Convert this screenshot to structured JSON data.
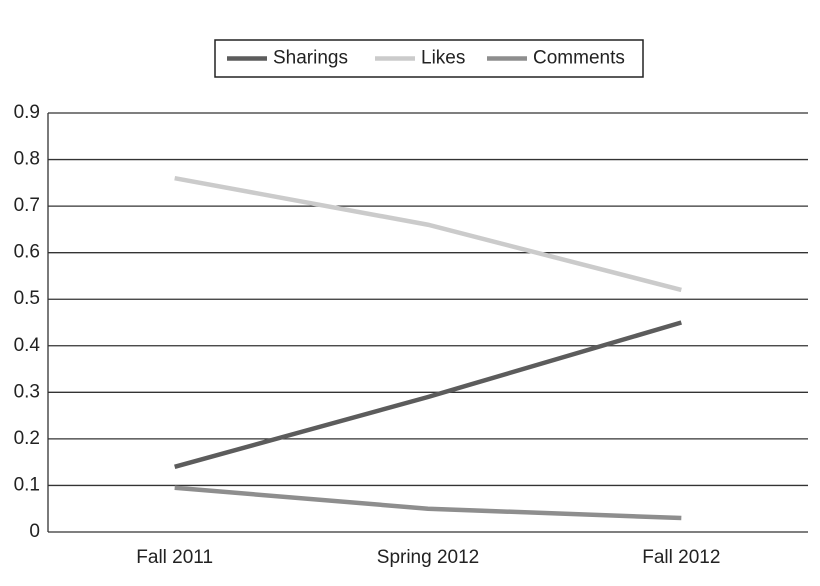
{
  "chart_data": {
    "type": "line",
    "categories": [
      "Fall 2011",
      "Spring 2012",
      "Fall 2012"
    ],
    "series": [
      {
        "name": "Sharings",
        "color": "#5c5c5c",
        "values": [
          0.14,
          0.29,
          0.45
        ]
      },
      {
        "name": "Likes",
        "color": "#cbcbcb",
        "values": [
          0.76,
          0.66,
          0.52
        ]
      },
      {
        "name": "Comments",
        "color": "#8e8e8e",
        "values": [
          0.095,
          0.05,
          0.03
        ]
      }
    ],
    "ylim": [
      0,
      0.9
    ],
    "yticks": [
      0,
      0.1,
      0.2,
      0.3,
      0.4,
      0.5,
      0.6,
      0.7,
      0.8,
      0.9
    ],
    "grid": true,
    "legend": "top"
  }
}
